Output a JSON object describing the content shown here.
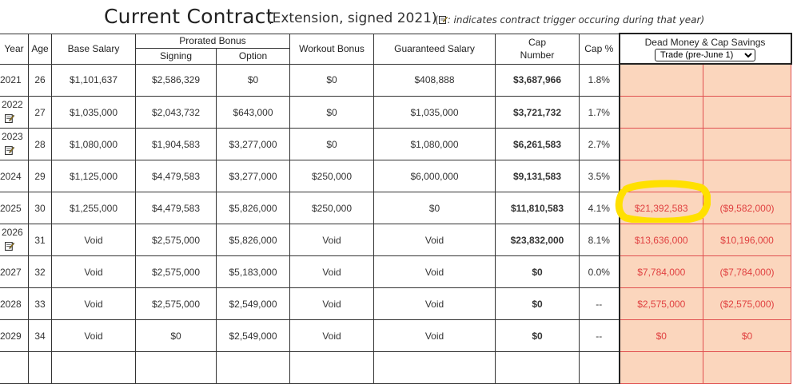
{
  "title": {
    "main": "Current Contract",
    "sub": "(Extension, signed 2021)",
    "note_open": "(",
    "note_text": ": indicates contract trigger occuring during that year)"
  },
  "headers": {
    "year": "Year",
    "age": "Age",
    "base_salary": "Base Salary",
    "prorated_bonus": "Prorated Bonus",
    "signing": "Signing",
    "option": "Option",
    "workout_bonus": "Workout Bonus",
    "guaranteed_salary": "Guaranteed Salary",
    "cap_number": "Cap Number",
    "cap_pct": "Cap %",
    "dead_money": "Dead Money & Cap Savings",
    "dead_select": "Trade (pre-June 1)"
  },
  "rows": [
    {
      "year": "2021",
      "age": "26",
      "base": "$1,101,637",
      "signing": "$2,586,329",
      "option": "$0",
      "workout": "$0",
      "guaranteed": "$408,888",
      "cap": "$3,687,966",
      "pct": "1.8%",
      "dead": "",
      "savings": ""
    },
    {
      "year": "2022",
      "age": "27",
      "base": "$1,035,000",
      "signing": "$2,043,732",
      "option": "$643,000",
      "workout": "$0",
      "guaranteed": "$1,035,000",
      "cap": "$3,721,732",
      "pct": "1.7%",
      "dead": "",
      "savings": ""
    },
    {
      "year": "2023",
      "age": "28",
      "base": "$1,080,000",
      "signing": "$1,904,583",
      "option": "$3,277,000",
      "workout": "$0",
      "guaranteed": "$1,080,000",
      "cap": "$6,261,583",
      "pct": "2.7%",
      "dead": "",
      "savings": ""
    },
    {
      "year": "2024",
      "age": "29",
      "base": "$1,125,000",
      "signing": "$4,479,583",
      "option": "$3,277,000",
      "workout": "$250,000",
      "guaranteed": "$6,000,000",
      "cap": "$9,131,583",
      "pct": "3.5%",
      "dead": "",
      "savings": ""
    },
    {
      "year": "2025",
      "age": "30",
      "base": "$1,255,000",
      "signing": "$4,479,583",
      "option": "$5,826,000",
      "workout": "$250,000",
      "guaranteed": "$0",
      "cap": "$11,810,583",
      "pct": "4.1%",
      "dead": "$21,392,583",
      "savings": "($9,582,000)"
    },
    {
      "year": "2026",
      "age": "31",
      "base": "Void",
      "signing": "$2,575,000",
      "option": "$5,826,000",
      "workout": "Void",
      "guaranteed": "Void",
      "cap": "$23,832,000",
      "pct": "8.1%",
      "dead": "$13,636,000",
      "savings": "$10,196,000"
    },
    {
      "year": "2027",
      "age": "32",
      "base": "Void",
      "signing": "$2,575,000",
      "option": "$5,183,000",
      "workout": "Void",
      "guaranteed": "Void",
      "cap": "$0",
      "pct": "0.0%",
      "dead": "$7,784,000",
      "savings": "($7,784,000)"
    },
    {
      "year": "2028",
      "age": "33",
      "base": "Void",
      "signing": "$2,575,000",
      "option": "$2,549,000",
      "workout": "Void",
      "guaranteed": "Void",
      "cap": "$0",
      "pct": "--",
      "dead": "$2,575,000",
      "savings": "($2,575,000)"
    },
    {
      "year": "2029",
      "age": "34",
      "base": "Void",
      "signing": "$0",
      "option": "$2,549,000",
      "workout": "Void",
      "guaranteed": "Void",
      "cap": "$0",
      "pct": "--",
      "dead": "$0",
      "savings": "$0"
    }
  ],
  "colors": {
    "dead_bg": "#fbd6bd",
    "dead_text": "#e04040",
    "highlight": "#ffe000"
  }
}
